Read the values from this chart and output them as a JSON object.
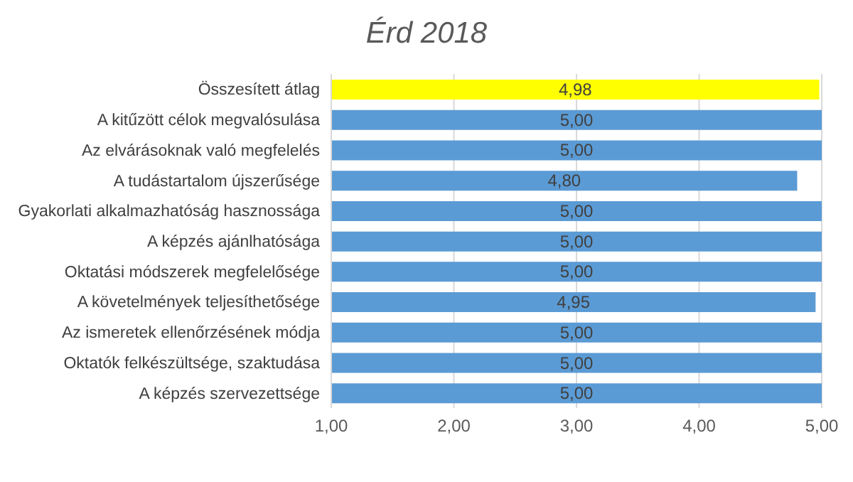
{
  "chart_data": {
    "type": "bar",
    "orientation": "horizontal",
    "title": "Érd 2018",
    "categories": [
      "Összesített átlag",
      "A kitűzött célok megvalósulása",
      "Az elvárásoknak való megfelelés",
      "A tudástartalom újszerűsége",
      "Gyakorlati alkalmazhatóság hasznossága",
      "A képzés ajánlhatósága",
      "Oktatási módszerek megfelelősége",
      "A követelmények teljesíthetősége",
      "Az ismeretek ellenőrzésének módja",
      "Oktatók felkészültsége, szaktudása",
      "A képzés szervezettsége"
    ],
    "values": [
      4.98,
      5,
      5,
      4.8,
      5,
      5,
      5,
      4.95,
      5,
      5,
      5
    ],
    "colors": [
      "#ffff00",
      "#5b9bd5",
      "#5b9bd5",
      "#5b9bd5",
      "#5b9bd5",
      "#5b9bd5",
      "#5b9bd5",
      "#5b9bd5",
      "#5b9bd5",
      "#5b9bd5",
      "#5b9bd5"
    ],
    "value_labels": [
      "4,98",
      "5,00",
      "5,00",
      "4,80",
      "5,00",
      "5,00",
      "5,00",
      "4,95",
      "5,00",
      "5,00",
      "5,00"
    ],
    "xlim": [
      1,
      5
    ],
    "xticks": [
      {
        "value": 1,
        "label": "1,00"
      },
      {
        "value": 2,
        "label": "2,00"
      },
      {
        "value": 3,
        "label": "3,00"
      },
      {
        "value": 4,
        "label": "4,00"
      },
      {
        "value": 5,
        "label": "5,00"
      }
    ],
    "grid": "x",
    "legend": false
  }
}
